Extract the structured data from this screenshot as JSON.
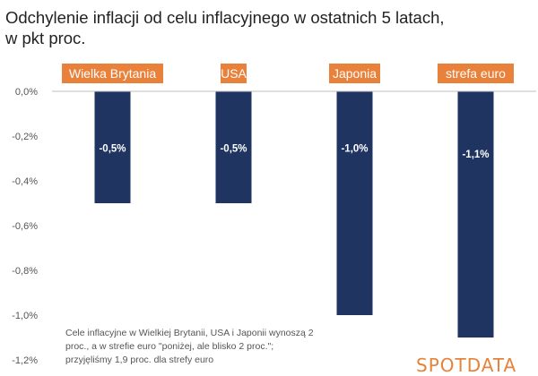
{
  "chart_data": {
    "type": "bar",
    "title": [
      "Odchylenie inflacji od celu inflacyjnego w ostatnich 5 latach,",
      "w pkt proc."
    ],
    "categories": [
      "Wielka Brytania",
      "USA",
      "Japonia",
      "strefa euro"
    ],
    "values": [
      -0.5,
      -0.5,
      -1.0,
      -1.1
    ],
    "value_labels": [
      "-0,5%",
      "-0,5%",
      "-1,0%",
      "-1,1%"
    ],
    "ylim": [
      -1.2,
      0.0
    ],
    "y_ticks": [
      0.0,
      -0.2,
      -0.4,
      -0.6,
      -0.8,
      -1.0,
      -1.2
    ],
    "y_tick_labels": [
      "0,0%",
      "-0,2%",
      "-0,4%",
      "-0,6%",
      "-0,8%",
      "-1,0%",
      "-1,2%"
    ],
    "xlabel": "",
    "ylabel": "",
    "grid": false,
    "legend": "none"
  },
  "note": [
    "Cele inflacyjne w Wielkiej Brytanii, USA i Japonii wynoszą 2",
    "proc., a w strefie euro \"poniżej, ale blisko 2 proc.\";",
    "przyjęliśmy 1,9 proc. dla strefy euro"
  ],
  "logo": "SPOTDATA",
  "colors": {
    "bar": "#1f3461",
    "category_label_bg": "#e9813a",
    "category_label_text": "#ffffff",
    "value_label_text": "#ffffff",
    "axis": "#bfbfbf",
    "tick_text": "#555555",
    "logo": "#e5833a"
  }
}
